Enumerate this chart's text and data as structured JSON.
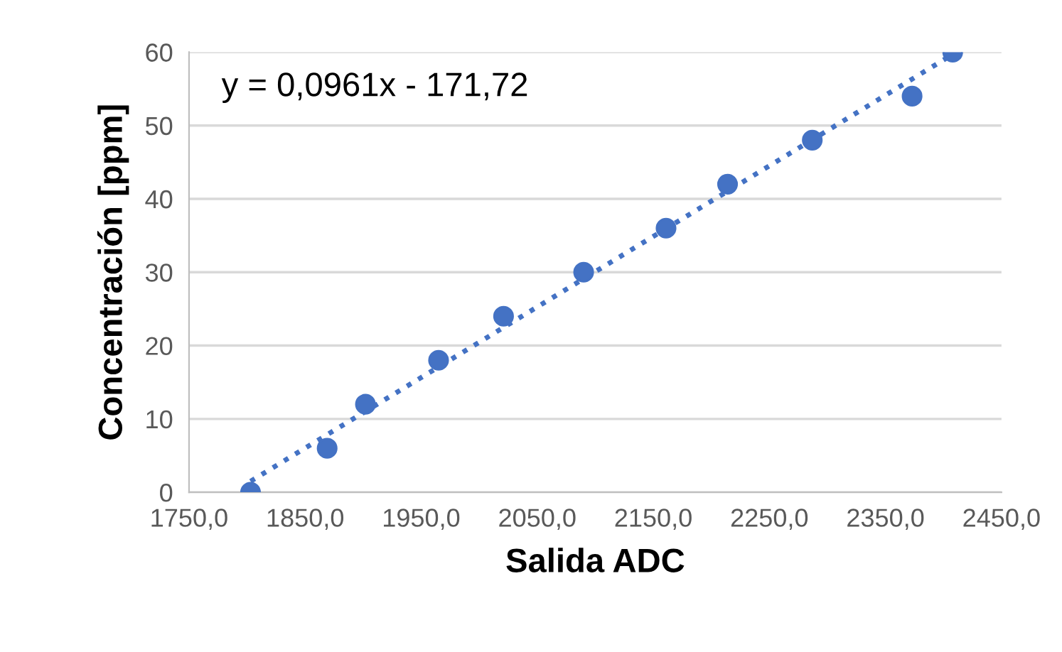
{
  "chart_data": {
    "type": "scatter",
    "xlabel": "Salida ADC",
    "ylabel": "Concentración [ppm]",
    "xlim": [
      1750,
      2450
    ],
    "ylim": [
      0,
      60
    ],
    "xticks": [
      {
        "value": 1750,
        "label": "1750,0"
      },
      {
        "value": 1850,
        "label": "1850,0"
      },
      {
        "value": 1950,
        "label": "1950,0"
      },
      {
        "value": 2050,
        "label": "2050,0"
      },
      {
        "value": 2150,
        "label": "2150,0"
      },
      {
        "value": 2250,
        "label": "2250,0"
      },
      {
        "value": 2350,
        "label": "2350,0"
      },
      {
        "value": 2450,
        "label": "2450,0"
      }
    ],
    "yticks": [
      0,
      10,
      20,
      30,
      40,
      50,
      60
    ],
    "grid": "y",
    "series": [
      {
        "marker": "circle",
        "color": "#4472c4",
        "x": [
          1803,
          1869,
          1902,
          1965,
          2021,
          2090,
          2161,
          2214,
          2287,
          2373,
          2408
        ],
        "values": [
          0,
          6,
          12,
          18,
          24,
          30,
          36,
          42,
          48,
          54,
          60
        ]
      },
      {
        "type": "line",
        "marker": "none",
        "color": "#4472c4",
        "line_style": "dotted",
        "x": [
          1803,
          2408
        ],
        "values": [
          1.5,
          59.7
        ]
      }
    ],
    "annotations": [
      "y = 0,0961x - 171,72"
    ]
  }
}
